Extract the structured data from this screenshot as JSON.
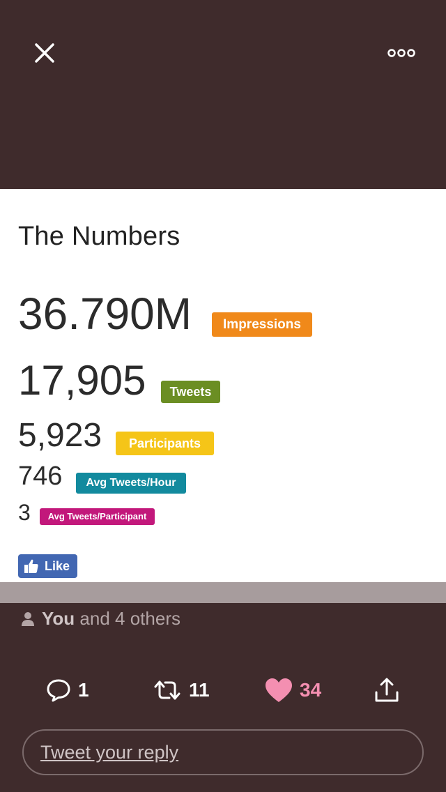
{
  "card": {
    "title": "The Numbers",
    "stats": [
      {
        "value": "36.790M",
        "label": "Impressions",
        "color": "#f0891a"
      },
      {
        "value": "17,905",
        "label": "Tweets",
        "color": "#6b8e23"
      },
      {
        "value": "5,923",
        "label": "Participants",
        "color": "#f5c518"
      },
      {
        "value": "746",
        "label": "Avg Tweets/Hour",
        "color": "#128a9e"
      },
      {
        "value": "3",
        "label": "Avg Tweets/Participant",
        "color": "#c2187b"
      }
    ],
    "like_button": {
      "label": "Like",
      "color": "#4267b2"
    }
  },
  "likers": {
    "you": "You",
    "rest": "and 4 others"
  },
  "actions": {
    "reply_count": "1",
    "retweet_count": "11",
    "like_count": "34"
  },
  "reply": {
    "placeholder": "Tweet your reply"
  },
  "icons": {
    "close": "close-icon",
    "more": "more-icon",
    "person": "person-icon",
    "reply": "reply-icon",
    "retweet": "retweet-icon",
    "heart": "heart-icon",
    "share": "share-icon",
    "thumbs_up": "thumbs-up-icon"
  }
}
